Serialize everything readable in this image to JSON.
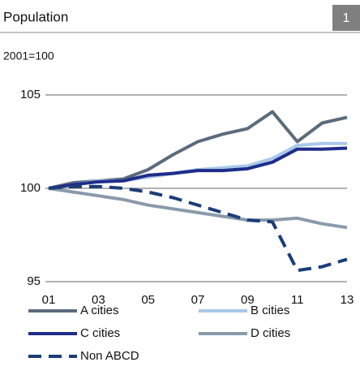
{
  "chart_data": {
    "type": "line",
    "title": "Population",
    "badge": "1",
    "subtitle": "2001=100",
    "categories": [
      "01",
      null,
      "03",
      null,
      "05",
      null,
      "07",
      null,
      "09",
      null,
      "11",
      null,
      "13"
    ],
    "ylim": [
      95,
      105
    ],
    "yticks": [
      95,
      100,
      105
    ],
    "grid": true,
    "series": [
      {
        "name": "A cities",
        "color": "#5b6b7c",
        "dash": false,
        "values": [
          100,
          100.3,
          100.4,
          100.5,
          101.0,
          101.8,
          102.5,
          102.9,
          103.2,
          104.1,
          102.5,
          103.5,
          103.8
        ]
      },
      {
        "name": "B cities",
        "color": "#a9c8ea",
        "dash": false,
        "values": [
          100,
          100.2,
          100.4,
          100.4,
          100.6,
          100.8,
          101.0,
          101.1,
          101.2,
          101.6,
          102.3,
          102.4,
          102.4
        ]
      },
      {
        "name": "C cities",
        "color": "#1f2d8a",
        "dash": false,
        "values": [
          100,
          100.2,
          100.35,
          100.4,
          100.7,
          100.8,
          100.95,
          100.95,
          101.05,
          101.4,
          102.1,
          102.1,
          102.15
        ]
      },
      {
        "name": "D cities",
        "color": "#8a9aab",
        "dash": false,
        "values": [
          100,
          99.8,
          99.6,
          99.4,
          99.1,
          98.9,
          98.7,
          98.5,
          98.3,
          98.3,
          98.4,
          98.1,
          97.9
        ]
      },
      {
        "name": "Non ABCD",
        "color": "#1b3d78",
        "dash": true,
        "values": [
          100,
          100.1,
          100.1,
          100.0,
          99.8,
          99.5,
          99.1,
          98.7,
          98.3,
          98.2,
          95.6,
          95.8,
          96.2
        ]
      }
    ]
  }
}
